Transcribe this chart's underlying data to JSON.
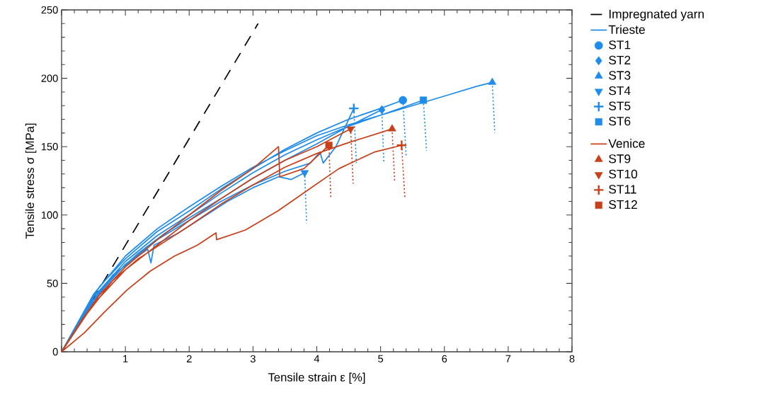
{
  "chart_data": {
    "type": "line",
    "xlabel": "Tensile strain ε [%]",
    "ylabel": "Tensile stress σ [MPa]",
    "xlim": [
      0,
      8
    ],
    "ylim": [
      0,
      250
    ],
    "xticks": [
      {
        "value": 0,
        "label": null
      },
      1,
      2,
      3,
      4,
      5,
      6,
      7,
      8
    ],
    "yticks": [
      0,
      50,
      100,
      150,
      200,
      250
    ],
    "grid": false,
    "legend": "right",
    "series": [
      {
        "name": "Impregnated yarn",
        "color": "#000000",
        "line_style": "dashed",
        "x": [
          0,
          3.08
        ],
        "values": [
          0,
          240
        ]
      },
      {
        "name": "Trieste",
        "color": "#1f8ceb",
        "line_style": "solid",
        "x": [
          0,
          0.3,
          0.6,
          1,
          1.5,
          2,
          2.5,
          3,
          3.5,
          4,
          4.5,
          5,
          5.35,
          null,
          0,
          0.4,
          0.8,
          1.2,
          1.6,
          2,
          2.5,
          3,
          3.5,
          4,
          4.5,
          5.02,
          null,
          0,
          0.5,
          1,
          1.5,
          2,
          2.5,
          3,
          3.5,
          4,
          4.5,
          5,
          5.5,
          6,
          6.5,
          6.75,
          null,
          0,
          0.4,
          0.8,
          1.2,
          1.35,
          1.4,
          1.45,
          1.8,
          2.2,
          2.6,
          3,
          3.4,
          3.6,
          3.81,
          null,
          0,
          0.5,
          1,
          1.5,
          2,
          2.5,
          3,
          3.5,
          3.9,
          4.05,
          4.1,
          4.3,
          4.58,
          null,
          0,
          0.5,
          1,
          1.5,
          2,
          2.5,
          3,
          3.5,
          4,
          4.5,
          5,
          5.67
        ],
        "values": [
          0,
          25,
          48,
          68,
          88,
          103,
          119,
          134,
          148,
          160,
          170,
          178,
          184,
          null,
          0,
          30,
          55,
          72,
          86,
          98,
          112,
          127,
          140,
          152,
          165,
          177,
          null,
          0,
          42,
          70,
          90,
          106,
          121,
          135,
          147,
          158,
          166,
          173,
          180,
          187,
          194,
          197,
          null,
          0,
          32,
          56,
          70,
          75,
          65,
          78,
          86,
          98,
          110,
          120,
          128,
          126,
          131,
          null,
          0,
          38,
          64,
          82,
          96,
          110,
          122,
          132,
          138,
          146,
          138,
          150,
          178,
          null,
          0,
          40,
          66,
          85,
          100,
          116,
          131,
          144,
          155,
          165,
          173,
          184
        ]
      },
      {
        "color": "#1f8ceb",
        "line_style": "dotted",
        "x": [
          5.35,
          5.4,
          null,
          5.02,
          5.05,
          null,
          6.75,
          6.79,
          null,
          3.81,
          3.84,
          null,
          4.58,
          4.62,
          null,
          5.67,
          5.72
        ],
        "values": [
          184,
          143,
          null,
          177,
          139,
          null,
          197,
          160,
          null,
          131,
          94,
          null,
          178,
          138,
          null,
          184,
          147
        ]
      },
      {
        "name": "ST1",
        "type": "scatter",
        "color": "#1f8ceb",
        "marker": "circle",
        "x": [
          5.35
        ],
        "values": [
          184
        ]
      },
      {
        "name": "ST2",
        "type": "scatter",
        "color": "#1f8ceb",
        "marker": "diamond",
        "x": [
          5.02
        ],
        "values": [
          177
        ]
      },
      {
        "name": "ST3",
        "type": "scatter",
        "color": "#1f8ceb",
        "marker": "triangle",
        "x": [
          6.75
        ],
        "values": [
          197
        ]
      },
      {
        "name": "ST4",
        "type": "scatter",
        "color": "#1f8ceb",
        "marker": "triangle-down",
        "x": [
          3.81
        ],
        "values": [
          131
        ]
      },
      {
        "name": "ST5",
        "type": "scatter",
        "color": "#1f8ceb",
        "marker": "plus",
        "x": [
          4.58
        ],
        "values": [
          178
        ]
      },
      {
        "name": "ST6",
        "type": "scatter",
        "color": "#1f8ceb",
        "marker": "square",
        "x": [
          5.67
        ],
        "values": [
          184
        ]
      },
      {
        "name": "Venice",
        "color": "#c8401a",
        "line_style": "solid",
        "x": [
          0,
          0.3,
          0.6,
          1,
          1.5,
          2,
          2.5,
          3,
          3.4,
          3.42,
          3.8,
          4.19,
          null,
          0,
          0.4,
          0.8,
          1.2,
          1.6,
          2,
          2.5,
          3,
          3.5,
          4,
          4.5,
          5.18,
          null,
          0,
          0.5,
          1,
          2,
          2.5,
          3,
          3.5,
          4,
          4.53,
          null,
          0,
          0.36,
          0.65,
          1.02,
          1.39,
          1.77,
          2.13,
          2.42,
          2.43,
          2.88,
          3.39,
          4.13,
          4.35,
          4.9,
          5.33
        ],
        "values": [
          0,
          22,
          42,
          62,
          82,
          100,
          118,
          134,
          150,
          128,
          134,
          151,
          null,
          0,
          28,
          52,
          68,
          80,
          92,
          108,
          122,
          135,
          145,
          153,
          163,
          null,
          0,
          35,
          60,
          96,
          112,
          127,
          140,
          150,
          163,
          null,
          0,
          14,
          28,
          45,
          59,
          70,
          78,
          87,
          82,
          89,
          103,
          127,
          134,
          146,
          151
        ]
      },
      {
        "color": "#c8401a",
        "line_style": "dotted",
        "x": [
          5.18,
          5.22,
          null,
          4.53,
          4.57,
          null,
          5.33,
          5.38,
          null,
          4.19,
          4.22
        ],
        "values": [
          163,
          125,
          null,
          163,
          123,
          null,
          151,
          113,
          null,
          151,
          113
        ]
      },
      {
        "name": "ST9",
        "type": "scatter",
        "color": "#c8401a",
        "marker": "triangle",
        "x": [
          5.18
        ],
        "values": [
          163
        ]
      },
      {
        "name": "ST10",
        "type": "scatter",
        "color": "#c8401a",
        "marker": "triangle-down",
        "x": [
          4.53
        ],
        "values": [
          163
        ]
      },
      {
        "name": "ST11",
        "type": "scatter",
        "color": "#c8401a",
        "marker": "plus",
        "x": [
          5.33
        ],
        "values": [
          151
        ]
      },
      {
        "name": "ST12",
        "type": "scatter",
        "color": "#c8401a",
        "marker": "square",
        "x": [
          4.19
        ],
        "values": [
          151
        ]
      }
    ]
  }
}
